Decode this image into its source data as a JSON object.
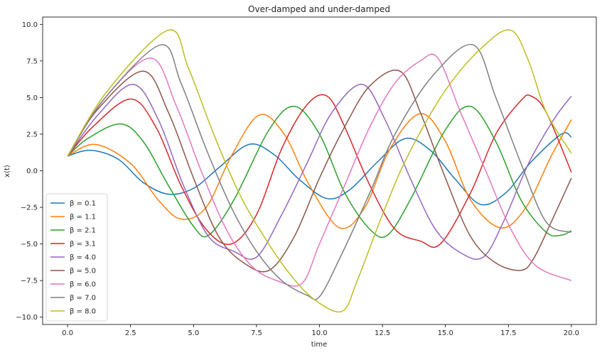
{
  "chart_data": {
    "type": "line",
    "title": "Over-damped and under-damped",
    "xlabel": "time",
    "ylabel": "x(t)",
    "xlim": [
      -0.99,
      20.99
    ],
    "ylim": [
      -10.5,
      10.5
    ],
    "xticks": [
      0.0,
      2.5,
      5.0,
      7.5,
      10.0,
      12.5,
      15.0,
      17.5,
      20.0
    ],
    "xtick_labels": [
      "0.0",
      "2.5",
      "5.0",
      "7.5",
      "10.0",
      "12.5",
      "15.0",
      "17.5",
      "20.0"
    ],
    "yticks": [
      10.0,
      7.5,
      5.0,
      2.5,
      0.0,
      -2.5,
      -5.0,
      -7.5,
      -10.0
    ],
    "ytick_labels": [
      "10.0",
      "7.5",
      "5.0",
      "2.5",
      "0.0",
      "−2.5",
      "−5.0",
      "−7.5",
      "−10.0"
    ],
    "grid": false,
    "legend_position": "lower-left",
    "series": [
      {
        "name": "β = 0.1",
        "color": "#1f77b4",
        "x": [
          0,
          0.9,
          2.0,
          3.0,
          4.0,
          5.0,
          6.0,
          7.2,
          8.2,
          9.2,
          10.3,
          11.2,
          12.3,
          13.4,
          14.4,
          15.4,
          16.4,
          17.4,
          18.4,
          19.6,
          20.0
        ],
        "y": [
          1.0,
          1.4,
          0.8,
          -0.8,
          -1.6,
          -1.2,
          0.2,
          1.8,
          1.1,
          -0.6,
          -1.9,
          -1.3,
          0.6,
          2.2,
          1.4,
          -0.6,
          -2.3,
          -1.5,
          0.6,
          2.5,
          2.3
        ]
      },
      {
        "name": "β = 1.1",
        "color": "#ff7f0e",
        "x": [
          0,
          1.1,
          2.5,
          3.6,
          4.5,
          5.5,
          6.5,
          7.6,
          8.6,
          9.6,
          10.8,
          11.8,
          12.8,
          14.0,
          15.0,
          16.0,
          17.2,
          18.2,
          19.2,
          20.0
        ],
        "y": [
          1.0,
          1.8,
          0.5,
          -2.0,
          -3.3,
          -2.5,
          1.0,
          3.8,
          2.5,
          -1.0,
          -3.9,
          -2.5,
          1.5,
          3.9,
          2.0,
          -2.0,
          -3.9,
          -2.5,
          1.0,
          3.5
        ]
      },
      {
        "name": "β = 2.1",
        "color": "#2ca02c",
        "x": [
          0,
          0.8,
          2.1,
          3.0,
          4.0,
          5.0,
          5.6,
          6.6,
          8.0,
          9.0,
          10.0,
          11.0,
          12.0,
          12.7,
          13.6,
          15.0,
          16.0,
          17.0,
          18.0,
          19.0,
          19.6,
          20.0
        ],
        "y": [
          1.0,
          2.2,
          3.2,
          2.0,
          -1.0,
          -3.8,
          -4.4,
          -2.0,
          2.8,
          4.4,
          2.5,
          -1.5,
          -4.0,
          -4.4,
          -2.0,
          2.8,
          4.4,
          2.0,
          -2.0,
          -4.2,
          -4.4,
          -4.1
        ]
      },
      {
        "name": "β = 3.1",
        "color": "#d62728",
        "x": [
          0,
          1.0,
          2.5,
          3.5,
          4.5,
          5.5,
          6.5,
          7.5,
          8.5,
          9.5,
          10.3,
          11.0,
          12.0,
          13.0,
          14.0,
          14.8,
          16.0,
          17.0,
          18.0,
          18.4,
          19.0,
          20.0
        ],
        "y": [
          1.0,
          3.0,
          4.9,
          3.0,
          -1.0,
          -4.0,
          -5.0,
          -3.0,
          1.5,
          4.5,
          5.1,
          3.0,
          -1.0,
          -4.0,
          -4.8,
          -5.0,
          -1.5,
          2.5,
          4.8,
          5.1,
          4.0,
          -0.1
        ]
      },
      {
        "name": "β = 4.0",
        "color": "#9467bd",
        "x": [
          0,
          1.2,
          2.6,
          3.6,
          4.6,
          5.6,
          6.6,
          7.5,
          8.5,
          9.5,
          10.5,
          11.7,
          12.6,
          13.6,
          14.6,
          15.6,
          16.5,
          17.3,
          18.3,
          19.3,
          20.0
        ],
        "y": [
          1.0,
          3.8,
          5.9,
          3.5,
          -1.0,
          -4.5,
          -5.5,
          -5.9,
          -3.0,
          0.5,
          4.0,
          5.9,
          3.5,
          -0.5,
          -4.0,
          -5.6,
          -5.9,
          -3.5,
          0.5,
          3.5,
          5.1
        ]
      },
      {
        "name": "β = 5.0",
        "color": "#8c564b",
        "x": [
          0,
          1.2,
          3.0,
          4.0,
          5.0,
          6.0,
          7.0,
          8.0,
          9.0,
          10.0,
          11.0,
          12.0,
          13.2,
          14.0,
          15.0,
          16.0,
          17.0,
          18.0,
          18.5,
          19.2,
          20.0
        ],
        "y": [
          1.0,
          4.2,
          6.8,
          4.0,
          -0.5,
          -4.5,
          -6.3,
          -6.8,
          -4.5,
          -0.5,
          3.0,
          5.8,
          6.8,
          4.0,
          -0.5,
          -4.5,
          -6.3,
          -6.8,
          -6.0,
          -3.5,
          -0.5
        ]
      },
      {
        "name": "β = 6.0",
        "color": "#e377c2",
        "x": [
          0,
          1.4,
          3.3,
          4.3,
          5.3,
          6.3,
          7.3,
          8.3,
          9.3,
          10.0,
          11.0,
          12.0,
          13.0,
          14.0,
          14.7,
          15.6,
          16.6,
          17.6,
          18.6,
          20.0
        ],
        "y": [
          1.0,
          4.8,
          7.7,
          4.5,
          0.0,
          -4.0,
          -6.5,
          -7.5,
          -7.7,
          -5.0,
          -1.0,
          3.0,
          6.0,
          7.5,
          7.7,
          4.0,
          0.0,
          -4.0,
          -6.5,
          -7.5
        ]
      },
      {
        "name": "β = 7.0",
        "color": "#7f7f7f",
        "x": [
          0,
          1.5,
          3.7,
          4.5,
          5.5,
          6.5,
          7.5,
          8.5,
          9.5,
          10.0,
          10.8,
          12.0,
          13.0,
          14.5,
          16.1,
          17.0,
          18.0,
          19.0,
          20.0
        ],
        "y": [
          1.0,
          5.0,
          8.6,
          6.0,
          1.5,
          -2.5,
          -5.5,
          -7.5,
          -8.5,
          -8.6,
          -6.0,
          -1.5,
          2.5,
          6.5,
          8.6,
          5.0,
          0.5,
          -3.5,
          -4.2
        ]
      },
      {
        "name": "β = 8.0",
        "color": "#bcbd22",
        "x": [
          0,
          1.6,
          4.0,
          4.8,
          5.8,
          6.8,
          7.8,
          8.8,
          9.8,
          10.9,
          11.5,
          12.5,
          13.5,
          15.0,
          16.5,
          17.6,
          18.3,
          19.0,
          20.0
        ],
        "y": [
          1.0,
          5.5,
          9.6,
          7.0,
          2.5,
          -1.5,
          -4.5,
          -7.0,
          -8.8,
          -9.6,
          -7.5,
          -3.0,
          1.0,
          5.5,
          8.5,
          9.6,
          7.5,
          4.0,
          1.2
        ]
      }
    ]
  }
}
